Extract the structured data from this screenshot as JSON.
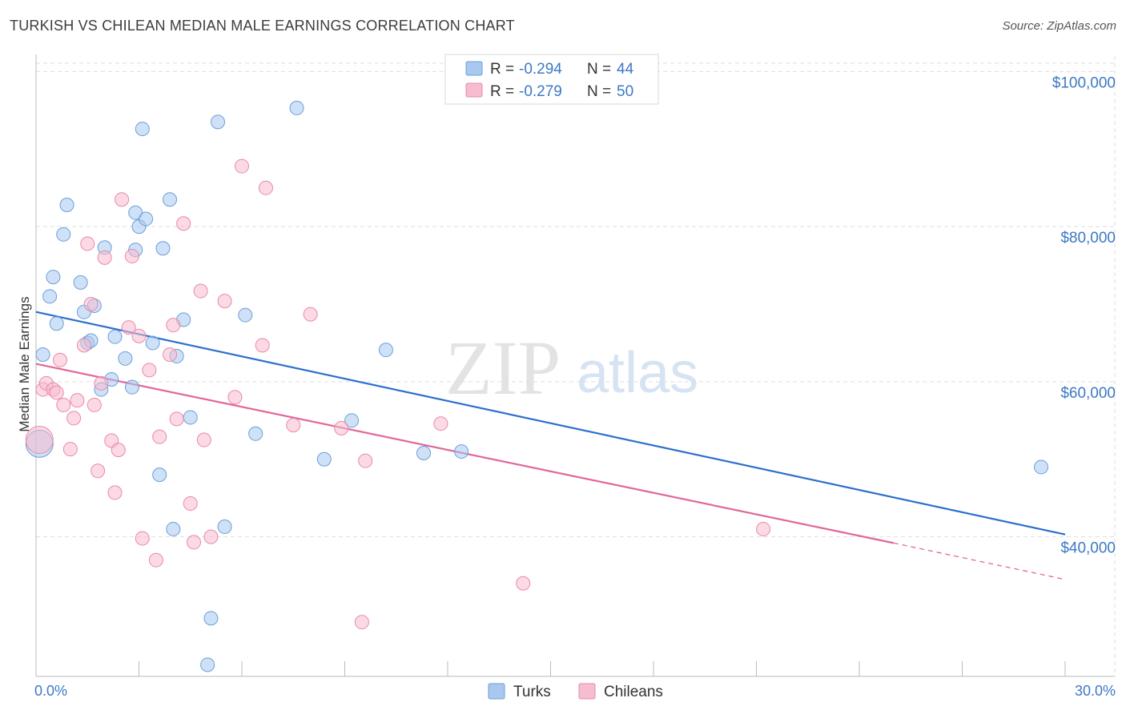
{
  "title": "TURKISH VS CHILEAN MEDIAN MALE EARNINGS CORRELATION CHART",
  "source": "Source: ZipAtlas.com",
  "watermark": {
    "zip": "ZIP",
    "atlas": "atlas"
  },
  "legend": {
    "rows": [
      {
        "r_label": "R = ",
        "r_value": "-0.294",
        "n_label": "N = ",
        "n_value": "44",
        "color": "#a8c8f0",
        "stroke": "#6a9fd8"
      },
      {
        "r_label": "R = ",
        "r_value": "-0.279",
        "n_label": "N = ",
        "n_value": "50",
        "color": "#f7bcd0",
        "stroke": "#e889a8"
      }
    ]
  },
  "chart_data": {
    "type": "scatter",
    "title": "TURKISH VS CHILEAN MEDIAN MALE EARNINGS CORRELATION CHART",
    "xlabel": "",
    "ylabel": "Median Male Earnings",
    "xlim": [
      0,
      30
    ],
    "ylim": [
      22000,
      102000
    ],
    "x_tick_labels": [
      "0.0%",
      "30.0%"
    ],
    "y_ticks": [
      40000,
      60000,
      80000,
      100000
    ],
    "y_tick_labels": [
      "$40,000",
      "$60,000",
      "$80,000",
      "$100,000"
    ],
    "series": [
      {
        "name": "Turks",
        "fill": "#a8c8f0",
        "stroke": "#6a9fd8",
        "trend_color": "#2d6fcc",
        "trend": {
          "x0": 0,
          "y0": 69000,
          "x1": 30,
          "y1": 40300
        },
        "points": [
          [
            0.1,
            52000
          ],
          [
            0.2,
            63500
          ],
          [
            0.4,
            71000
          ],
          [
            0.5,
            73500
          ],
          [
            0.6,
            67500
          ],
          [
            0.8,
            79000
          ],
          [
            0.9,
            82800
          ],
          [
            1.3,
            72800
          ],
          [
            1.4,
            69000
          ],
          [
            1.5,
            65000
          ],
          [
            1.6,
            65300
          ],
          [
            1.7,
            69800
          ],
          [
            1.9,
            59000
          ],
          [
            2.0,
            77300
          ],
          [
            2.2,
            60300
          ],
          [
            2.3,
            65800
          ],
          [
            2.6,
            63000
          ],
          [
            2.8,
            59300
          ],
          [
            2.9,
            81800
          ],
          [
            2.9,
            77000
          ],
          [
            3.0,
            80000
          ],
          [
            3.1,
            92600
          ],
          [
            3.2,
            81000
          ],
          [
            3.4,
            65000
          ],
          [
            3.6,
            48000
          ],
          [
            3.7,
            77200
          ],
          [
            3.9,
            83500
          ],
          [
            4.0,
            41000
          ],
          [
            4.1,
            63300
          ],
          [
            4.3,
            68000
          ],
          [
            4.5,
            55400
          ],
          [
            5.0,
            23500
          ],
          [
            5.1,
            29500
          ],
          [
            5.3,
            93500
          ],
          [
            5.5,
            41300
          ],
          [
            6.1,
            68600
          ],
          [
            6.4,
            53300
          ],
          [
            7.6,
            95300
          ],
          [
            8.4,
            50000
          ],
          [
            9.2,
            55000
          ],
          [
            10.2,
            64100
          ],
          [
            11.3,
            50800
          ],
          [
            12.4,
            51000
          ],
          [
            29.3,
            49000
          ]
        ]
      },
      {
        "name": "Chileans",
        "fill": "#f7bcd0",
        "stroke": "#e889a8",
        "trend_color": "#e0679a",
        "trend": {
          "x0": 0,
          "y0": 62300,
          "x1": 25,
          "y1": 39200
        },
        "trend_dash": {
          "x0": 25,
          "y0": 39200,
          "x1": 30,
          "y1": 34500
        },
        "points": [
          [
            0.1,
            52500
          ],
          [
            0.2,
            59000
          ],
          [
            0.3,
            59800
          ],
          [
            0.5,
            59000
          ],
          [
            0.6,
            58600
          ],
          [
            0.7,
            62800
          ],
          [
            0.8,
            57000
          ],
          [
            1.0,
            51300
          ],
          [
            1.1,
            55300
          ],
          [
            1.2,
            57600
          ],
          [
            1.4,
            64700
          ],
          [
            1.5,
            77800
          ],
          [
            1.6,
            70000
          ],
          [
            1.7,
            57000
          ],
          [
            1.8,
            48500
          ],
          [
            1.9,
            59800
          ],
          [
            2.0,
            76000
          ],
          [
            2.2,
            52400
          ],
          [
            2.3,
            45700
          ],
          [
            2.4,
            51200
          ],
          [
            2.5,
            83500
          ],
          [
            2.7,
            67000
          ],
          [
            2.8,
            76200
          ],
          [
            3.0,
            65900
          ],
          [
            3.1,
            39800
          ],
          [
            3.3,
            61500
          ],
          [
            3.5,
            37000
          ],
          [
            3.6,
            52900
          ],
          [
            3.9,
            63500
          ],
          [
            4.0,
            67300
          ],
          [
            4.1,
            55200
          ],
          [
            4.3,
            80400
          ],
          [
            4.5,
            44300
          ],
          [
            4.6,
            39300
          ],
          [
            4.8,
            71700
          ],
          [
            4.9,
            52500
          ],
          [
            5.1,
            40000
          ],
          [
            5.5,
            70400
          ],
          [
            5.8,
            58000
          ],
          [
            6.0,
            87800
          ],
          [
            6.6,
            64700
          ],
          [
            6.7,
            85000
          ],
          [
            7.5,
            54400
          ],
          [
            8.0,
            68700
          ],
          [
            8.9,
            54000
          ],
          [
            9.5,
            29000
          ],
          [
            9.6,
            49800
          ],
          [
            11.8,
            54600
          ],
          [
            14.2,
            34000
          ],
          [
            21.2,
            41000
          ]
        ]
      }
    ]
  },
  "bottom_legend": [
    {
      "label": "Turks",
      "color": "#a8c8f0",
      "stroke": "#6a9fd8"
    },
    {
      "label": "Chileans",
      "color": "#f7bcd0",
      "stroke": "#e889a8"
    }
  ]
}
